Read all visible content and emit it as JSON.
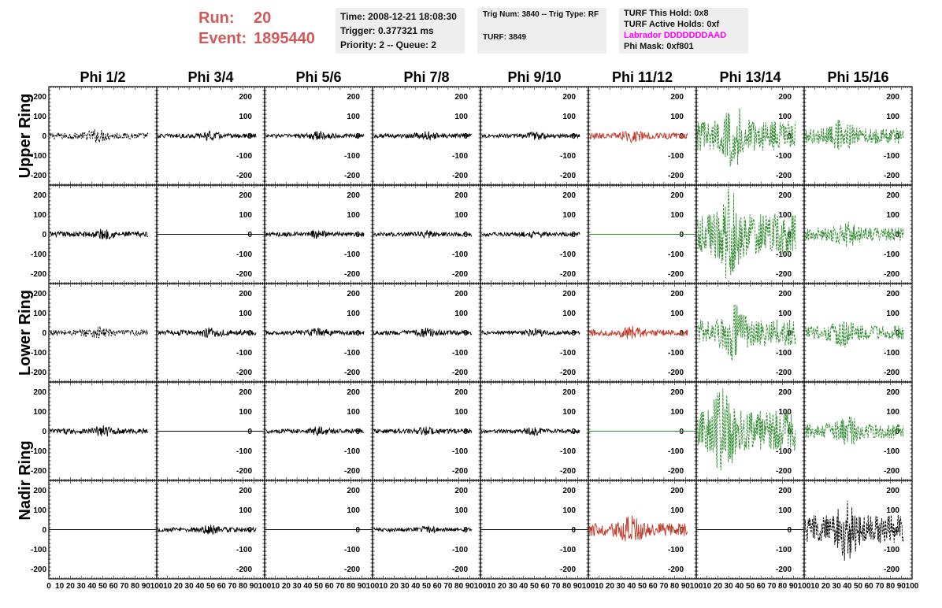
{
  "header": {
    "run_label": "Run:",
    "run_value": "20",
    "event_label": "Event:",
    "event_value": "1895440",
    "time": "Time: 2008-12-21 18:08:30",
    "trigger": "Trigger: 0.377321 ms",
    "priority": "Priority: 2 -- Queue: 2",
    "trig_num": "Trig Num: 3840 -- Trig Type: RF",
    "turf": "TURF: 3849",
    "turf_hold": "TURF This Hold: 0x8",
    "turf_active": "TURF Active Holds: 0xf",
    "labrador": "Labrador DDDDDDDAAD",
    "phi_mask": "Phi Mask: 0xf801"
  },
  "colors": {
    "header_red": "#d05a5a",
    "labrador_magenta": "#ff00ff",
    "trace_black": "#000000",
    "trace_red": "#c0392b",
    "trace_green": "#2e8b2e"
  },
  "chart_data": {
    "type": "line",
    "columns": [
      "Phi 1/2",
      "Phi 3/4",
      "Phi 5/6",
      "Phi 7/8",
      "Phi 9/10",
      "Phi 11/12",
      "Phi 13/14",
      "Phi 15/16"
    ],
    "rows": [
      "Upper Ring",
      "",
      "Lower Ring",
      "",
      "Nadir Ring"
    ],
    "row_label_centers": [
      0.5,
      2.5,
      4
    ],
    "xlim": [
      0,
      100
    ],
    "ylim": [
      -250,
      250
    ],
    "x_tick_labels": [
      "0",
      "10",
      "20",
      "30",
      "40",
      "50",
      "60",
      "70",
      "80",
      "90",
      "100"
    ],
    "y_tick_values": [
      -200,
      -100,
      0,
      100,
      200
    ],
    "y_tick_labels": [
      "-200",
      "-100",
      "0",
      "100",
      "200"
    ],
    "panels": [
      [
        "black-dash",
        "black",
        "black",
        "black",
        "black",
        "red",
        "green-dash",
        "green-dash"
      ],
      [
        "black",
        "flat",
        "black",
        "black",
        "black",
        "flat-green",
        "green-dash",
        "green-dash"
      ],
      [
        "black-dash",
        "black",
        "black",
        "black",
        "black",
        "red",
        "green-dash",
        "green-dash"
      ],
      [
        "black",
        "flat",
        "black",
        "black",
        "black",
        "flat-green",
        "green-dash",
        "green-dash"
      ],
      [
        "flat",
        "black",
        "flat",
        "black",
        "flat",
        "red",
        "flat",
        "black-dash"
      ]
    ],
    "amplitudes": [
      [
        35,
        25,
        25,
        25,
        22,
        35,
        170,
        90
      ],
      [
        30,
        0,
        25,
        22,
        22,
        0,
        240,
        75
      ],
      [
        35,
        30,
        25,
        25,
        22,
        35,
        150,
        80
      ],
      [
        30,
        0,
        25,
        25,
        22,
        0,
        240,
        85
      ],
      [
        0,
        25,
        0,
        20,
        0,
        75,
        0,
        165
      ]
    ],
    "bursts": [
      [
        45,
        50,
        50,
        50,
        50,
        40,
        35,
        35
      ],
      [
        50,
        50,
        50,
        50,
        50,
        50,
        30,
        40
      ],
      [
        45,
        50,
        50,
        50,
        50,
        40,
        35,
        35
      ],
      [
        50,
        50,
        50,
        50,
        50,
        50,
        25,
        40
      ],
      [
        50,
        50,
        50,
        50,
        50,
        40,
        50,
        40
      ]
    ]
  }
}
